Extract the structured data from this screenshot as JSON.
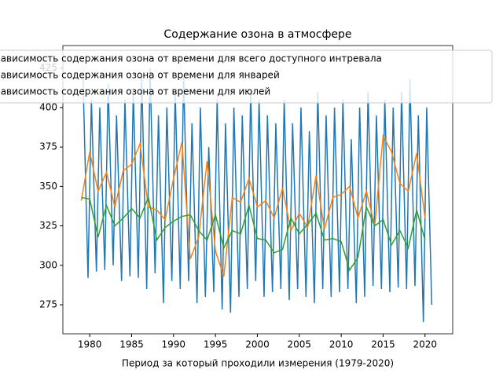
{
  "chart_data": {
    "type": "line",
    "title": "Содержание озона в атмосфере",
    "x_label": "Период за который проходили измерения (1979-2020)",
    "xlim": [
      1976.8,
      2023.3
    ],
    "ylim": [
      256.6,
      439.3
    ],
    "xticks": [
      1980,
      1985,
      1990,
      1995,
      2000,
      2005,
      2010,
      2015,
      2020
    ],
    "yticks": [
      275,
      300,
      325,
      350,
      375,
      400,
      425
    ],
    "legend": "upper left",
    "series": [
      {
        "name": "Зависимость содержания озона от времени для всего доступного интревала",
        "color": "#1f77b4",
        "x": [
          1979.2,
          1979.8,
          1980.2,
          1980.8,
          1981.2,
          1981.8,
          1982.2,
          1982.8,
          1983.2,
          1983.8,
          1984.2,
          1984.8,
          1985.2,
          1985.8,
          1986.2,
          1986.8,
          1987.2,
          1987.8,
          1988.2,
          1988.8,
          1989.2,
          1989.8,
          1990.2,
          1990.8,
          1991.2,
          1991.8,
          1992.2,
          1992.8,
          1993.2,
          1993.8,
          1994.2,
          1994.8,
          1995.2,
          1995.8,
          1996.2,
          1996.8,
          1997.2,
          1997.8,
          1998.2,
          1998.8,
          1999.2,
          1999.8,
          2000.2,
          2000.8,
          2001.2,
          2001.8,
          2002.2,
          2002.8,
          2003.2,
          2003.8,
          2004.2,
          2004.8,
          2005.2,
          2005.8,
          2006.2,
          2006.8,
          2007.2,
          2007.8,
          2008.2,
          2008.8,
          2009.2,
          2009.8,
          2010.2,
          2010.8,
          2011.2,
          2011.8,
          2012.2,
          2012.8,
          2013.2,
          2013.8,
          2014.2,
          2014.8,
          2015.2,
          2015.8,
          2016.2,
          2016.8,
          2017.2,
          2017.8,
          2018.2,
          2018.8,
          2019.2,
          2019.8,
          2020.2,
          2020.8
        ],
        "values": [
          420,
          292,
          405,
          296,
          400,
          297,
          415,
          300,
          395,
          290,
          405,
          293,
          410,
          292,
          420,
          285,
          425,
          295,
          395,
          276,
          400,
          290,
          410,
          285,
          420,
          290,
          390,
          276,
          400,
          280,
          375,
          283,
          405,
          272,
          390,
          270,
          400,
          280,
          395,
          285,
          410,
          290,
          405,
          280,
          395,
          283,
          390,
          285,
          405,
          278,
          390,
          285,
          400,
          280,
          385,
          276,
          410,
          285,
          395,
          280,
          400,
          283,
          405,
          285,
          380,
          276,
          400,
          280,
          410,
          287,
          395,
          285,
          405,
          283,
          400,
          286,
          410,
          285,
          418,
          287,
          395,
          264,
          400,
          275
        ]
      },
      {
        "name": "Зависимость содержания озона от времени для  январей",
        "color": "#ff7f0e",
        "x": [
          1979,
          1980,
          1981,
          1982,
          1983,
          1984,
          1985,
          1986,
          1987,
          1988,
          1989,
          1990,
          1991,
          1992,
          1993,
          1994,
          1995,
          1996,
          1997,
          1998,
          1999,
          2000,
          2001,
          2002,
          2003,
          2004,
          2005,
          2006,
          2007,
          2008,
          2009,
          2010,
          2011,
          2012,
          2013,
          2014,
          2015,
          2016,
          2017,
          2018,
          2019,
          2020
        ],
        "values": [
          341,
          372,
          347,
          359,
          337,
          360,
          364,
          377,
          337,
          335,
          329,
          355,
          378,
          304,
          318,
          366,
          309,
          293,
          343,
          340,
          355,
          337,
          341,
          330,
          349,
          322,
          333,
          324,
          357,
          323,
          343,
          345,
          350,
          330,
          347,
          325,
          382,
          372,
          352,
          347,
          371,
          330
        ]
      },
      {
        "name": "Зависимость содержания озона от времени для  июлей",
        "color": "#2ca02c",
        "x": [
          1979,
          1980,
          1981,
          1982,
          1983,
          1984,
          1985,
          1986,
          1987,
          1988,
          1989,
          1990,
          1991,
          1992,
          1993,
          1994,
          1995,
          1996,
          1997,
          1998,
          1999,
          2000,
          2001,
          2002,
          2003,
          2004,
          2005,
          2006,
          2007,
          2008,
          2009,
          2010,
          2011,
          2012,
          2013,
          2014,
          2015,
          2016,
          2017,
          2018,
          2019,
          2020
        ],
        "values": [
          343,
          342,
          318,
          338,
          325,
          330,
          336,
          330,
          343,
          316,
          324,
          328,
          331,
          332,
          322,
          316,
          332,
          311,
          322,
          320,
          338,
          317,
          316,
          308,
          310,
          330,
          320,
          326,
          333,
          316,
          317,
          315,
          297,
          305,
          337,
          325,
          329,
          313,
          322,
          311,
          335,
          316
        ]
      }
    ]
  }
}
